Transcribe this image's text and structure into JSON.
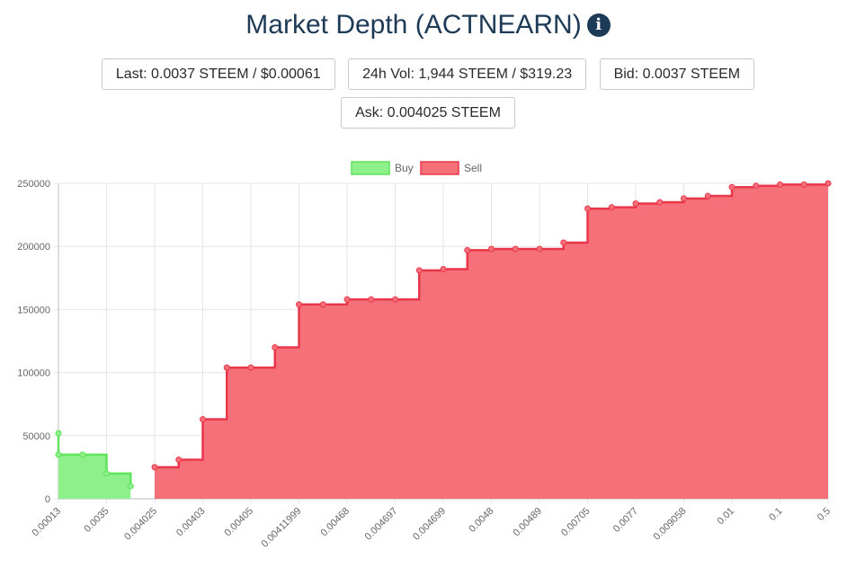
{
  "header": {
    "title": "Market Depth (ACTNEARN)",
    "info_icon": "info-circle-icon"
  },
  "stats": {
    "last": "Last: 0.0037 STEEM / $0.00061",
    "volume": "24h Vol: 1,944 STEEM / $319.23",
    "bid": "Bid: 0.0037 STEEM",
    "ask": "Ask: 0.004025 STEEM"
  },
  "chart_data": {
    "type": "area",
    "categories": [
      "0.00013",
      "0.0035",
      "0.004025",
      "0.00403",
      "0.00405",
      "0.00411999",
      "0.00468",
      "0.004697",
      "0.004699",
      "0.0048",
      "0.00489",
      "0.00705",
      "0.0077",
      "0.009058",
      "0.01",
      "0.1",
      "0.5"
    ],
    "ylim": [
      0,
      250000
    ],
    "yticks": [
      "0",
      "50000",
      "100000",
      "150000",
      "200000",
      "250000"
    ],
    "grid": true,
    "legend": {
      "placement": "top-center",
      "entries": [
        "Buy",
        "Sell"
      ]
    },
    "colors": {
      "buy_fill": "#8ef08a",
      "buy_line": "#5ee35a",
      "sell_fill": "#f6707a",
      "sell_line": "#e8374a",
      "grid": "#e6e6e6"
    },
    "series": [
      {
        "name": "Buy",
        "points": [
          [
            0,
            52000
          ],
          [
            0,
            35000
          ],
          [
            0.5,
            35000
          ],
          [
            1,
            20000
          ],
          [
            1.5,
            10000
          ]
        ]
      },
      {
        "name": "Sell",
        "points": [
          [
            2,
            25000
          ],
          [
            2.5,
            31000
          ],
          [
            3,
            63000
          ],
          [
            3.5,
            104000
          ],
          [
            4,
            104000
          ],
          [
            4.5,
            120000
          ],
          [
            5,
            154000
          ],
          [
            5.5,
            154000
          ],
          [
            6,
            158000
          ],
          [
            6.5,
            158000
          ],
          [
            7,
            158000
          ],
          [
            7.5,
            181000
          ],
          [
            8,
            182000
          ],
          [
            8.5,
            197000
          ],
          [
            9,
            198000
          ],
          [
            9.5,
            198000
          ],
          [
            10,
            198000
          ],
          [
            10.5,
            203000
          ],
          [
            11,
            230000
          ],
          [
            11.5,
            231000
          ],
          [
            12,
            234000
          ],
          [
            12.5,
            235000
          ],
          [
            13,
            238000
          ],
          [
            13.5,
            240000
          ],
          [
            14,
            247000
          ],
          [
            14.5,
            248000
          ],
          [
            15,
            249000
          ],
          [
            15.5,
            249000
          ],
          [
            16,
            250000
          ]
        ]
      }
    ]
  }
}
